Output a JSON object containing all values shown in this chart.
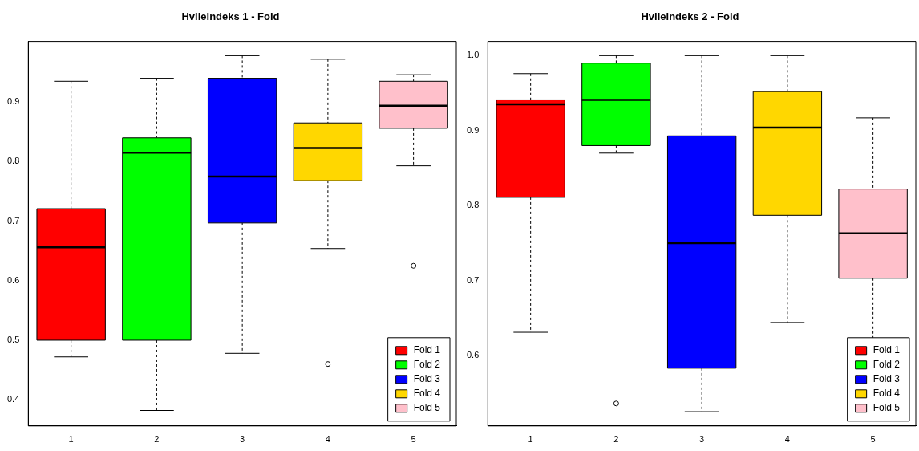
{
  "chart_data": [
    {
      "type": "box",
      "title": "Hvileindeks 1 - Fold",
      "categories": [
        "1",
        "2",
        "3",
        "4",
        "5"
      ],
      "series": [
        {
          "name": "Fold 1",
          "color": "#ff0000",
          "boxes": [
            {
              "low": 0.472,
              "q1": 0.5,
              "median": 0.656,
              "q3": 0.721,
              "high": 0.935
            },
            null,
            null,
            null,
            null
          ]
        },
        {
          "name": "Fold 2",
          "color": "#00ff00",
          "boxes": [
            null,
            {
              "low": 0.382,
              "q1": 0.5,
              "median": 0.815,
              "q3": 0.84,
              "high": 0.94
            },
            null,
            null,
            null
          ]
        },
        {
          "name": "Fold 3",
          "color": "#0000ff",
          "boxes": [
            null,
            null,
            {
              "low": 0.478,
              "q1": 0.697,
              "median": 0.775,
              "q3": 0.94,
              "high": 0.978
            },
            null,
            null
          ]
        },
        {
          "name": "Fold 4",
          "color": "#ffd700",
          "boxes": [
            null,
            null,
            null,
            {
              "low": 0.654,
              "q1": 0.768,
              "median": 0.823,
              "q3": 0.865,
              "high": 0.972,
              "outliers": [
                0.46
              ]
            },
            null
          ]
        },
        {
          "name": "Fold 5",
          "color": "#ffc0cb",
          "boxes": [
            null,
            null,
            null,
            null,
            {
              "low": 0.793,
              "q1": 0.856,
              "median": 0.894,
              "q3": 0.935,
              "high": 0.946,
              "outliers": [
                0.625
              ]
            }
          ]
        }
      ],
      "ylim": [
        0.356,
        1.002
      ],
      "yticks": [
        0.4,
        0.5,
        0.6,
        0.7,
        0.8,
        0.9
      ],
      "legend": "bottom right"
    },
    {
      "type": "box",
      "title": "Hvileindeks 2 - Fold",
      "categories": [
        "1",
        "2",
        "3",
        "4",
        "5"
      ],
      "series": [
        {
          "name": "Fold 1",
          "color": "#ff0000",
          "boxes": [
            {
              "low": 0.631,
              "q1": 0.811,
              "median": 0.935,
              "q3": 0.941,
              "high": 0.976
            },
            null,
            null,
            null,
            null
          ]
        },
        {
          "name": "Fold 2",
          "color": "#00ff00",
          "boxes": [
            null,
            {
              "low": 0.87,
              "q1": 0.88,
              "median": 0.941,
              "q3": 0.99,
              "high": 1.0,
              "outliers": [
                0.536
              ]
            },
            null,
            null,
            null
          ]
        },
        {
          "name": "Fold 3",
          "color": "#0000ff",
          "boxes": [
            null,
            null,
            {
              "low": 0.525,
              "q1": 0.583,
              "median": 0.75,
              "q3": 0.893,
              "high": 1.0
            },
            null,
            null
          ]
        },
        {
          "name": "Fold 4",
          "color": "#ffd700",
          "boxes": [
            null,
            null,
            null,
            {
              "low": 0.644,
              "q1": 0.787,
              "median": 0.904,
              "q3": 0.952,
              "high": 1.0
            },
            null
          ]
        },
        {
          "name": "Fold 5",
          "color": "#ffc0cb",
          "boxes": [
            null,
            null,
            null,
            null,
            {
              "low": 0.62,
              "q1": 0.703,
              "median": 0.763,
              "q3": 0.822,
              "high": 0.917
            }
          ]
        }
      ],
      "ylim": [
        0.506,
        1.019
      ],
      "yticks": [
        0.6,
        0.7,
        0.8,
        0.9,
        {
          "value": 1.0,
          "label": "1.0"
        }
      ],
      "legend": "bottom right"
    }
  ]
}
